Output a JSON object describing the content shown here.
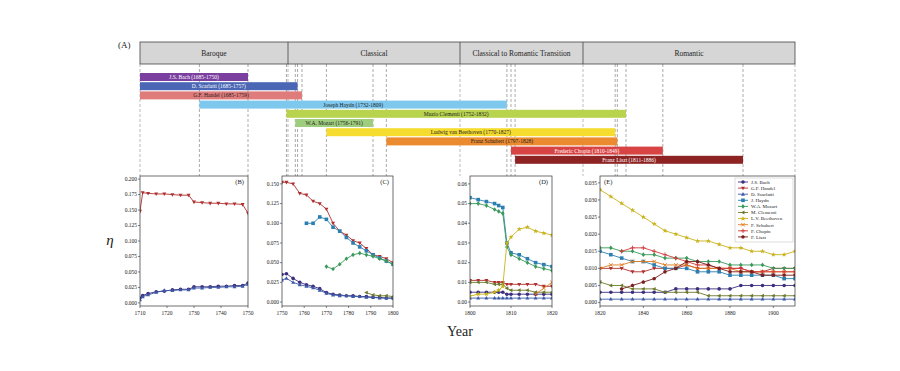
{
  "chart_data": [
    {
      "type": "timeline",
      "title": "(A)",
      "periods": [
        "Baroque",
        "Classical",
        "Classical to Romantic Transition",
        "Romantic"
      ],
      "composers": [
        {
          "label": "J.S. Bach (1685-1750)",
          "start": 1685,
          "end": 1750,
          "color": "#7b3fa0"
        },
        {
          "label": "D. Scarlatti (1685-1757)",
          "start": 1685,
          "end": 1757,
          "color": "#4a66b5"
        },
        {
          "label": "G.F. Handel (1685-1759)",
          "start": 1685,
          "end": 1759,
          "color": "#e07b7b"
        },
        {
          "label": "Joseph Haydn (1732-1809)",
          "start": 1732,
          "end": 1809,
          "color": "#7ec8ee"
        },
        {
          "label": "Muzio Clementi (1752-1832)",
          "start": 1752,
          "end": 1832,
          "color": "#b8d44f"
        },
        {
          "label": "W.A. Mozart (1756-1791)",
          "start": 1756,
          "end": 1791,
          "color": "#9fcd7e"
        },
        {
          "label": "Ludwig van Beethoven (1770-1827)",
          "start": 1770,
          "end": 1827,
          "color": "#f5dc2f"
        },
        {
          "label": "Franz Schubert (1797-1828)",
          "start": 1797,
          "end": 1828,
          "color": "#ec8a2f"
        },
        {
          "label": "Frederic Chopin (1810-1849)",
          "start": 1810,
          "end": 1849,
          "color": "#d84343"
        },
        {
          "label": "Franz Liszt (1811-1886)",
          "start": 1811,
          "end": 1886,
          "color": "#8e2323"
        }
      ]
    },
    {
      "type": "line",
      "title": "(B)",
      "ylabel": "η",
      "grid": false,
      "x": [
        1710,
        1711,
        1713,
        1716,
        1719,
        1722,
        1725,
        1728,
        1730,
        1733,
        1736,
        1739,
        1742,
        1745,
        1748,
        1750
      ],
      "xlim": [
        1710,
        1750
      ],
      "xticks": [
        1710,
        1720,
        1730,
        1740,
        1750
      ],
      "ylim": [
        -0.005,
        0.205
      ],
      "yticks": [
        {
          "value": 0,
          "label": "0.000"
        },
        0.025,
        {
          "value": 0.05,
          "label": "0.050"
        },
        0.075,
        {
          "value": 0.1,
          "label": "0.100"
        },
        0.125,
        {
          "value": 0.15,
          "label": "0.150"
        },
        0.175,
        {
          "value": 0.2,
          "label": "0.200"
        }
      ],
      "series": [
        {
          "name": "J.S. Bach",
          "color": "#3b2e7e",
          "marker": "circle",
          "values": [
            0.008,
            0.012,
            0.015,
            0.018,
            0.019,
            0.021,
            0.022,
            0.022,
            0.026,
            0.026,
            0.026,
            0.027,
            0.027,
            0.028,
            0.028,
            0.032
          ]
        },
        {
          "name": "G.F. Handel",
          "color": "#b03030",
          "marker": "triangle-down",
          "values": [
            0.148,
            0.178,
            0.177,
            0.176,
            0.176,
            0.175,
            0.174,
            0.174,
            0.163,
            0.162,
            0.161,
            0.161,
            0.16,
            0.16,
            0.159,
            0.145
          ]
        },
        {
          "name": "D. Scarlatti",
          "color": "#3d5aa8",
          "marker": "triangle-up",
          "values": [
            0.005,
            0.01,
            0.013,
            0.017,
            0.02,
            0.02,
            0.021,
            0.021,
            0.024,
            0.024,
            0.025,
            0.025,
            0.026,
            0.026,
            0.027,
            0.03
          ]
        }
      ]
    },
    {
      "type": "line",
      "title": "(C)",
      "grid": false,
      "x": [
        1750,
        1752,
        1755,
        1758,
        1761,
        1764,
        1767,
        1770,
        1773,
        1776,
        1779,
        1782,
        1785,
        1788,
        1791,
        1794,
        1797,
        1800
      ],
      "xlim": [
        1750,
        1800
      ],
      "xticks": [
        1750,
        1760,
        1770,
        1780,
        1790,
        1800
      ],
      "ylim": [
        -0.005,
        0.16
      ],
      "yticks": [
        {
          "value": 0,
          "label": "0.000"
        },
        0.025,
        {
          "value": 0.05,
          "label": "0.050"
        },
        0.075,
        {
          "value": 0.1,
          "label": "0.100"
        },
        0.125,
        {
          "value": 0.15,
          "label": "0.150"
        }
      ],
      "series": [
        {
          "name": "J.S. Bach",
          "color": "#3b2e7e",
          "marker": "circle",
          "values": [
            0.035,
            0.036,
            0.03,
            0.025,
            0.022,
            0.02,
            0.017,
            0.012,
            0.01,
            0.009,
            0.008,
            0.008,
            0.007,
            0.007,
            0.006,
            0.006,
            0.005,
            0.005
          ]
        },
        {
          "name": "G.F. Handel",
          "color": "#b03030",
          "marker": "triangle-down",
          "values": [
            0.152,
            0.152,
            0.15,
            0.138,
            0.136,
            0.128,
            0.125,
            0.118,
            0.1,
            0.09,
            0.085,
            0.078,
            0.075,
            0.068,
            0.06,
            0.058,
            0.055,
            0.05
          ]
        },
        {
          "name": "D. Scarlatti",
          "color": "#3d5aa8",
          "marker": "triangle-up",
          "values": [
            0.028,
            0.03,
            0.025,
            0.022,
            0.02,
            0.018,
            0.015,
            0.011,
            0.009,
            0.008,
            0.008,
            0.007,
            0.007,
            0.006,
            0.006,
            0.005,
            0.005,
            0.005
          ]
        },
        {
          "name": "J. Haydn",
          "color": "#2b7fb0",
          "marker": "square",
          "values": [
            null,
            null,
            null,
            null,
            0.1,
            0.1,
            0.108,
            0.105,
            0.095,
            0.09,
            0.082,
            0.075,
            0.07,
            0.065,
            0.06,
            0.056,
            0.052,
            0.048
          ]
        },
        {
          "name": "W.A. Mozart",
          "color": "#3a9a5a",
          "marker": "diamond",
          "values": [
            null,
            null,
            null,
            null,
            null,
            null,
            null,
            0.045,
            0.042,
            0.048,
            0.055,
            0.06,
            0.062,
            0.06,
            0.058,
            0.055,
            0.052,
            0.048
          ]
        },
        {
          "name": "M. Clementi",
          "color": "#6b7a2a",
          "marker": "triangle-left",
          "values": [
            null,
            null,
            null,
            null,
            null,
            null,
            null,
            null,
            null,
            null,
            null,
            null,
            null,
            0.012,
            0.009,
            0.008,
            0.008,
            0.007
          ]
        }
      ]
    },
    {
      "type": "line",
      "title": "(D)",
      "xlabel": "Year",
      "grid": false,
      "x": [
        1800,
        1802,
        1804,
        1806,
        1807,
        1808,
        1809,
        1810,
        1812,
        1814,
        1816,
        1818,
        1820
      ],
      "xlim": [
        1800,
        1820
      ],
      "xticks": [
        1800,
        1810,
        1820
      ],
      "ylim": [
        -0.002,
        0.064
      ],
      "yticks": [
        {
          "value": 0,
          "label": "0.00"
        },
        0.01,
        0.02,
        0.03,
        0.04,
        0.05,
        0.06
      ],
      "series": [
        {
          "name": "J.S. Bach",
          "color": "#3b2e7e",
          "marker": "circle",
          "values": [
            0.005,
            0.005,
            0.005,
            0.005,
            0.005,
            0.005,
            0.004,
            0.004,
            0.004,
            0.004,
            0.004,
            0.004,
            0.004
          ]
        },
        {
          "name": "G.F. Handel",
          "color": "#b03030",
          "marker": "triangle-down",
          "values": [
            0.011,
            0.011,
            0.011,
            0.01,
            0.01,
            0.01,
            0.009,
            0.009,
            0.009,
            0.009,
            0.009,
            0.008,
            0.008
          ]
        },
        {
          "name": "D. Scarlatti",
          "color": "#3d5aa8",
          "marker": "triangle-up",
          "values": [
            0.002,
            0.002,
            0.002,
            0.002,
            0.002,
            0.002,
            0.002,
            0.002,
            0.002,
            0.002,
            0.002,
            0.002,
            0.002
          ]
        },
        {
          "name": "J. Haydn",
          "color": "#2b7fb0",
          "marker": "square",
          "values": [
            0.053,
            0.052,
            0.051,
            0.05,
            0.049,
            0.048,
            0.03,
            0.025,
            0.024,
            0.022,
            0.02,
            0.019,
            0.018
          ]
        },
        {
          "name": "W.A. Mozart",
          "color": "#3a9a5a",
          "marker": "diamond",
          "values": [
            0.05,
            0.05,
            0.049,
            0.047,
            0.046,
            0.045,
            0.028,
            0.024,
            0.022,
            0.02,
            0.018,
            0.017,
            0.016
          ]
        },
        {
          "name": "M. Clementi",
          "color": "#6b7a2a",
          "marker": "triangle-left",
          "values": [
            0.01,
            0.01,
            0.01,
            0.009,
            0.009,
            0.009,
            0.007,
            0.006,
            0.006,
            0.006,
            0.005,
            0.005,
            0.005
          ]
        },
        {
          "name": "L.V. Beethoven",
          "color": "#c9b21a",
          "marker": "star",
          "values": [
            0.003,
            0.004,
            0.004,
            0.005,
            0.006,
            0.008,
            0.03,
            0.033,
            0.037,
            0.038,
            0.036,
            0.035,
            0.034
          ]
        },
        {
          "name": "F. Schubert",
          "color": "#e07a20",
          "marker": "x",
          "values": [
            null,
            null,
            null,
            null,
            null,
            null,
            null,
            null,
            null,
            null,
            0.004,
            0.007,
            0.01
          ]
        }
      ]
    },
    {
      "type": "line",
      "title": "(E)",
      "grid": false,
      "legend": "upper right",
      "x": [
        1820,
        1825,
        1830,
        1835,
        1840,
        1845,
        1850,
        1855,
        1860,
        1865,
        1870,
        1875,
        1880,
        1885,
        1890,
        1895,
        1900,
        1905,
        1910
      ],
      "xlim": [
        1820,
        1910
      ],
      "xticks": [
        1820,
        1840,
        1860,
        1880,
        1900
      ],
      "ylim": [
        -0.001,
        0.037
      ],
      "yticks": [
        {
          "value": 0,
          "label": "0.000"
        },
        0.005,
        {
          "value": 0.01,
          "label": "0.010"
        },
        0.015,
        {
          "value": 0.02,
          "label": "0.020"
        },
        0.025,
        {
          "value": 0.03,
          "label": "0.030"
        },
        0.035
      ],
      "series": [
        {
          "name": "J.S. Bach",
          "color": "#3b2e7e",
          "marker": "circle",
          "values": [
            0.003,
            0.003,
            0.003,
            0.003,
            0.003,
            0.003,
            0.003,
            0.004,
            0.004,
            0.004,
            0.004,
            0.004,
            0.004,
            0.005,
            0.005,
            0.005,
            0.005,
            0.005,
            0.005
          ]
        },
        {
          "name": "G.F. Handel",
          "color": "#b03030",
          "marker": "triangle-down",
          "values": [
            0.01,
            0.01,
            0.01,
            0.009,
            0.009,
            0.01,
            0.01,
            0.01,
            0.011,
            0.01,
            0.01,
            0.01,
            0.01,
            0.01,
            0.009,
            0.009,
            0.01,
            0.01,
            0.01
          ]
        },
        {
          "name": "D. Scarlatti",
          "color": "#3d5aa8",
          "marker": "triangle-up",
          "values": [
            0.001,
            0.001,
            0.001,
            0.001,
            0.001,
            0.001,
            0.001,
            0.001,
            0.001,
            0.001,
            0.001,
            0.001,
            0.001,
            0.001,
            0.001,
            0.001,
            0.001,
            0.001,
            0.001
          ]
        },
        {
          "name": "J. Haydn",
          "color": "#2b7fb0",
          "marker": "square",
          "values": [
            0.015,
            0.014,
            0.013,
            0.012,
            0.012,
            0.011,
            0.01,
            0.01,
            0.01,
            0.009,
            0.009,
            0.009,
            0.008,
            0.008,
            0.008,
            0.008,
            0.008,
            0.007,
            0.007
          ]
        },
        {
          "name": "W.A. Mozart",
          "color": "#3a9a5a",
          "marker": "diamond",
          "values": [
            0.016,
            0.016,
            0.015,
            0.015,
            0.014,
            0.014,
            0.013,
            0.013,
            0.013,
            0.012,
            0.012,
            0.012,
            0.011,
            0.011,
            0.011,
            0.011,
            0.01,
            0.01,
            0.01
          ]
        },
        {
          "name": "M. Clementi",
          "color": "#6b7a2a",
          "marker": "triangle-left",
          "values": [
            0.006,
            0.005,
            0.005,
            0.004,
            0.004,
            0.004,
            0.003,
            0.003,
            0.003,
            0.003,
            0.002,
            0.002,
            0.002,
            0.002,
            0.002,
            0.002,
            0.002,
            0.002,
            0.002
          ]
        },
        {
          "name": "L.V. Beethoven",
          "color": "#c9b21a",
          "marker": "star",
          "values": [
            0.033,
            0.031,
            0.029,
            0.027,
            0.025,
            0.023,
            0.021,
            0.02,
            0.019,
            0.018,
            0.018,
            0.017,
            0.016,
            0.016,
            0.015,
            0.015,
            0.014,
            0.014,
            0.015
          ]
        },
        {
          "name": "F. Schubert",
          "color": "#e07a20",
          "marker": "x",
          "values": [
            0.01,
            0.011,
            0.011,
            0.012,
            0.012,
            0.012,
            0.011,
            0.011,
            0.011,
            0.01,
            0.01,
            0.01,
            0.01,
            0.009,
            0.009,
            0.009,
            0.009,
            0.009,
            0.009
          ]
        },
        {
          "name": "F. Chopin",
          "color": "#d33b3b",
          "marker": "plus",
          "values": [
            null,
            null,
            0.015,
            0.016,
            0.016,
            0.015,
            0.014,
            0.013,
            0.012,
            0.011,
            0.011,
            0.01,
            0.01,
            0.01,
            0.009,
            0.009,
            0.009,
            0.009,
            0.009
          ]
        },
        {
          "name": "F. Liszt",
          "color": "#7a1e1e",
          "marker": "pentagon",
          "values": [
            null,
            null,
            0.004,
            0.005,
            0.006,
            0.007,
            0.009,
            0.01,
            0.012,
            0.012,
            0.011,
            0.01,
            0.009,
            0.009,
            0.009,
            0.008,
            0.008,
            0.008,
            0.008
          ]
        }
      ]
    }
  ]
}
